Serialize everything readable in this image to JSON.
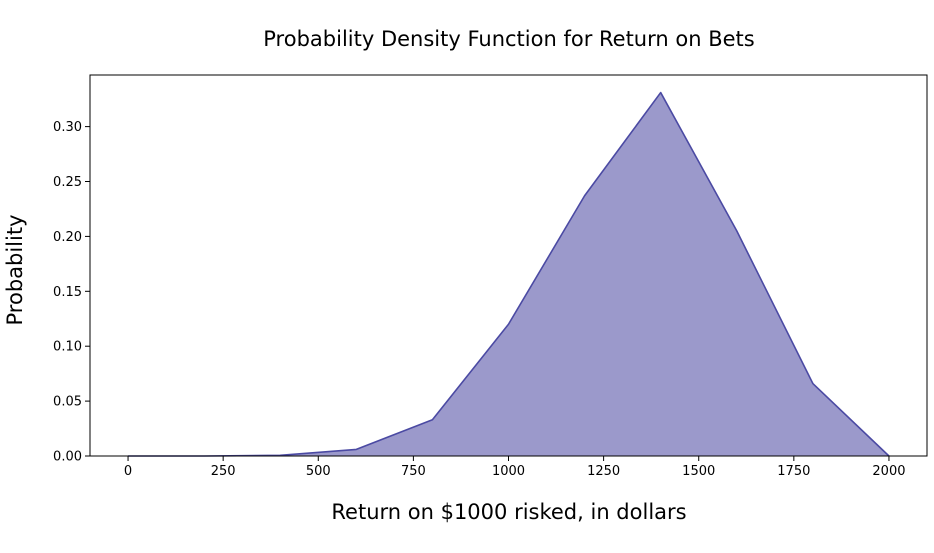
{
  "chart_data": {
    "type": "area",
    "title": "Probability Density Function for Return on Bets",
    "xlabel": "Return on $1000 risked, in dollars",
    "ylabel": "Probability",
    "x": [
      0,
      200,
      400,
      600,
      800,
      1000,
      1200,
      1400,
      1600,
      1800,
      2000
    ],
    "series": [
      {
        "values": [
          0.0,
          0.0,
          0.0006,
          0.006,
          0.033,
          0.12,
          0.237,
          0.331,
          0.205,
          0.066,
          0.0
        ]
      }
    ],
    "xlim": [
      -100,
      2100
    ],
    "ylim": [
      0,
      0.347
    ],
    "xticks": [
      0,
      250,
      500,
      750,
      1000,
      1250,
      1500,
      1750,
      2000
    ],
    "xtick_labels": [
      "0",
      "250",
      "500",
      "750",
      "1000",
      "1250",
      "1500",
      "1750",
      "2000"
    ],
    "yticks": [
      0.0,
      0.05,
      0.1,
      0.15,
      0.2,
      0.25,
      0.3
    ],
    "ytick_labels": [
      "0.00",
      "0.05",
      "0.10",
      "0.15",
      "0.20",
      "0.25",
      "0.30"
    ],
    "grid": false,
    "fill_color": "#9b99cb",
    "line_color": "#4b4aa3"
  }
}
